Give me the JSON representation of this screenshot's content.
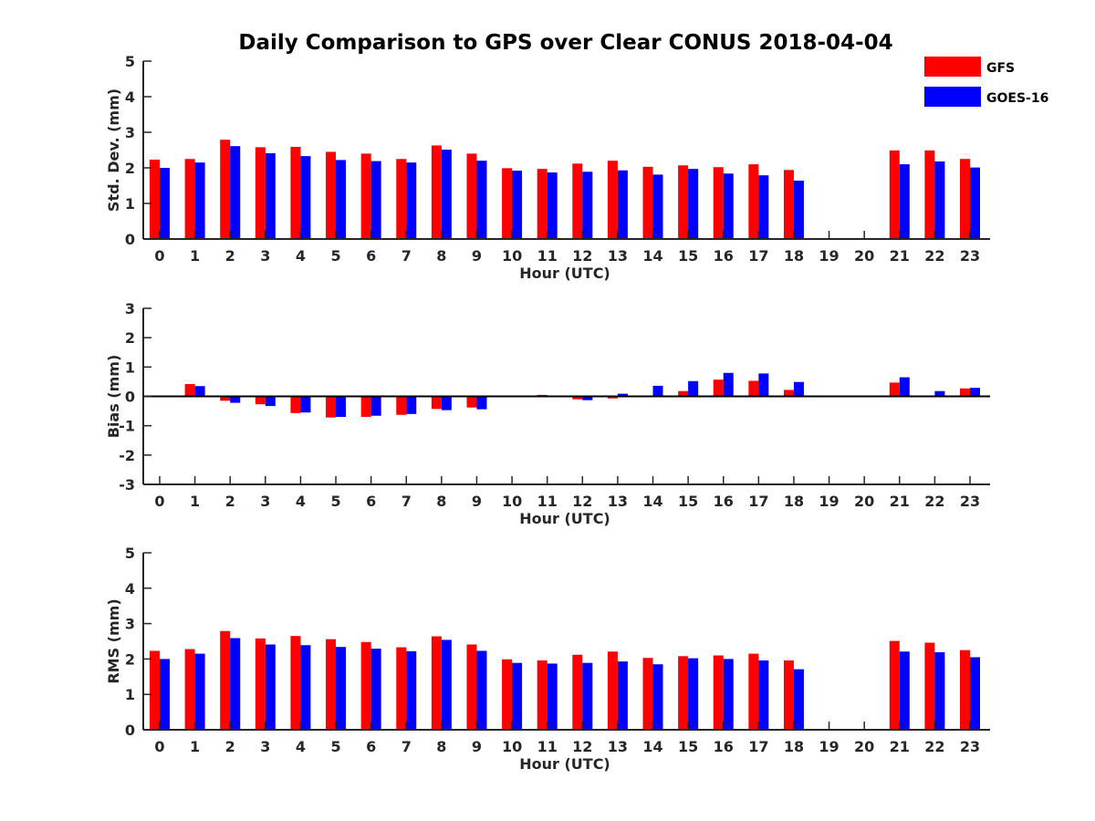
{
  "chart_data": {
    "type": "bar",
    "title": "Daily Comparison to GPS over Clear CONUS 2018-04-04",
    "legend": {
      "position": "top-right",
      "entries": [
        "GFS",
        "GOES-16"
      ]
    },
    "series_colors": {
      "GFS": "#ff0000",
      "GOES-16": "#0000ff"
    },
    "categories": [
      "0",
      "1",
      "2",
      "3",
      "4",
      "5",
      "6",
      "7",
      "8",
      "9",
      "10",
      "11",
      "12",
      "13",
      "14",
      "15",
      "16",
      "17",
      "18",
      "19",
      "20",
      "21",
      "22",
      "23"
    ],
    "panels": [
      {
        "id": "stddev",
        "ylabel": "Std. Dev. (mm)",
        "xlabel": "Hour (UTC)",
        "ylim": [
          0,
          5
        ],
        "yticks": [
          "0",
          "1",
          "2",
          "3",
          "4",
          "5"
        ],
        "series": [
          {
            "name": "GFS",
            "values": [
              2.23,
              2.25,
              2.79,
              2.58,
              2.59,
              2.45,
              2.4,
              2.25,
              2.63,
              2.4,
              1.99,
              1.97,
              2.12,
              2.2,
              2.03,
              2.07,
              2.02,
              2.1,
              1.94,
              null,
              null,
              2.49,
              2.49,
              2.25
            ]
          },
          {
            "name": "GOES-16",
            "values": [
              2.0,
              2.15,
              2.61,
              2.41,
              2.33,
              2.22,
              2.19,
              2.15,
              2.51,
              2.2,
              1.92,
              1.87,
              1.89,
              1.93,
              1.81,
              1.97,
              1.84,
              1.79,
              1.64,
              null,
              null,
              2.1,
              2.18,
              2.01
            ]
          }
        ]
      },
      {
        "id": "bias",
        "ylabel": "Bias (mm)",
        "xlabel": "Hour (UTC)",
        "ylim": [
          -3,
          3
        ],
        "yticks": [
          "-3",
          "-2",
          "-1",
          "0",
          "1",
          "2",
          "3"
        ],
        "series": [
          {
            "name": "GFS",
            "values": [
              0.02,
              0.42,
              -0.15,
              -0.27,
              -0.57,
              -0.72,
              -0.7,
              -0.63,
              -0.43,
              -0.38,
              0.01,
              0.05,
              -0.1,
              -0.07,
              0.03,
              0.18,
              0.57,
              0.53,
              0.22,
              null,
              null,
              0.47,
              0.0,
              0.27
            ]
          },
          {
            "name": "GOES-16",
            "values": [
              0.01,
              0.35,
              -0.22,
              -0.33,
              -0.55,
              -0.7,
              -0.66,
              -0.6,
              -0.47,
              -0.44,
              0.0,
              0.02,
              -0.13,
              0.09,
              0.36,
              0.52,
              0.8,
              0.78,
              0.49,
              null,
              null,
              0.65,
              0.18,
              0.29
            ]
          }
        ]
      },
      {
        "id": "rms",
        "ylabel": "RMS (mm)",
        "xlabel": "Hour (UTC)",
        "ylim": [
          0,
          5
        ],
        "yticks": [
          "0",
          "1",
          "2",
          "3",
          "4",
          "5"
        ],
        "series": [
          {
            "name": "GFS",
            "values": [
              2.23,
              2.28,
              2.79,
              2.58,
              2.65,
              2.56,
              2.48,
              2.33,
              2.64,
              2.41,
              1.99,
              1.96,
              2.12,
              2.21,
              2.03,
              2.08,
              2.1,
              2.15,
              1.96,
              null,
              null,
              2.51,
              2.46,
              2.25
            ]
          },
          {
            "name": "GOES-16",
            "values": [
              2.0,
              2.15,
              2.59,
              2.41,
              2.39,
              2.34,
              2.29,
              2.22,
              2.54,
              2.23,
              1.89,
              1.87,
              1.89,
              1.93,
              1.85,
              2.02,
              2.0,
              1.96,
              1.71,
              null,
              null,
              2.21,
              2.19,
              2.05
            ]
          }
        ]
      }
    ]
  }
}
